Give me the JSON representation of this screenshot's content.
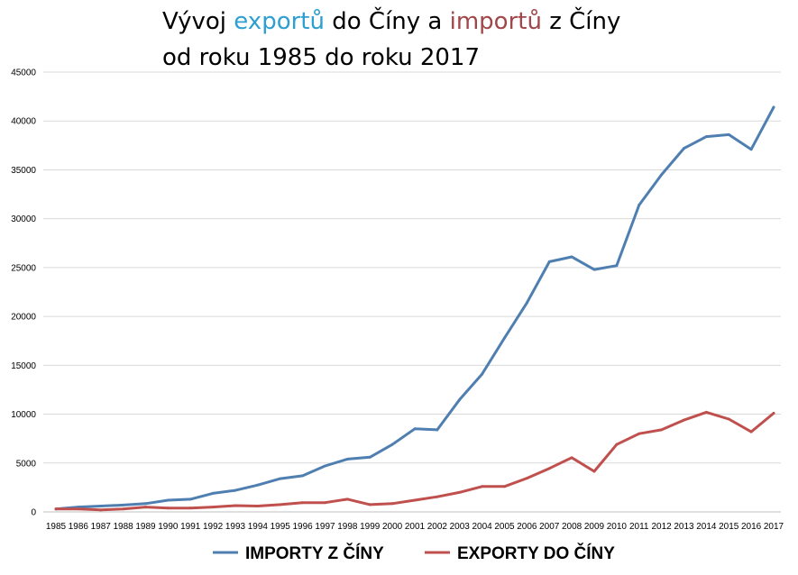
{
  "title": {
    "line1": {
      "p1": "Vývoj ",
      "p2": "exportů",
      "p3": " do Číny a ",
      "p4": "importů",
      "p5": " z Číny"
    },
    "line2": "od roku 1985 do roku 2017"
  },
  "colors": {
    "imports": "#4f7fb1",
    "exports": "#c0504d",
    "title_export": "#2e9fd1",
    "title_import": "#a1474a",
    "grid": "#d9d9d9"
  },
  "chart_data": {
    "type": "line",
    "x": [
      "1985",
      "1986",
      "1987",
      "1988",
      "1989",
      "1990",
      "1991",
      "1992",
      "1993",
      "1994",
      "1995",
      "1996",
      "1997",
      "1998",
      "1999",
      "2000",
      "2001",
      "2002",
      "2003",
      "2004",
      "2005",
      "2006",
      "2007",
      "2008",
      "2009",
      "2010",
      "2011",
      "2012",
      "2013",
      "2014",
      "2015",
      "2016",
      "2017"
    ],
    "series": [
      {
        "name": "IMPORTY Z ČÍNY",
        "color": "#4f7fb1",
        "values": [
          300,
          500,
          600,
          700,
          850,
          1200,
          1300,
          1900,
          2200,
          2750,
          3400,
          3700,
          4700,
          5400,
          5600,
          6900,
          8500,
          8400,
          11500,
          14100,
          17800,
          21400,
          25600,
          26100,
          24800,
          25200,
          31400,
          34500,
          37200,
          38400,
          38600,
          37100,
          41400
        ]
      },
      {
        "name": "EXPORTY DO ČÍNY",
        "color": "#c0504d",
        "values": [
          300,
          300,
          200,
          300,
          500,
          400,
          400,
          500,
          650,
          600,
          750,
          950,
          950,
          1300,
          750,
          850,
          1200,
          1550,
          2000,
          2600,
          2600,
          3450,
          4450,
          5550,
          4150,
          6900,
          8000,
          8400,
          9400,
          10200,
          9500,
          8200,
          10100
        ]
      }
    ],
    "ylim": [
      0,
      45000
    ],
    "yticks": [
      "0",
      "5000",
      "10000",
      "15000",
      "20000",
      "25000",
      "30000",
      "35000",
      "40000",
      "45000"
    ],
    "grid": true,
    "legend": "bottom"
  }
}
